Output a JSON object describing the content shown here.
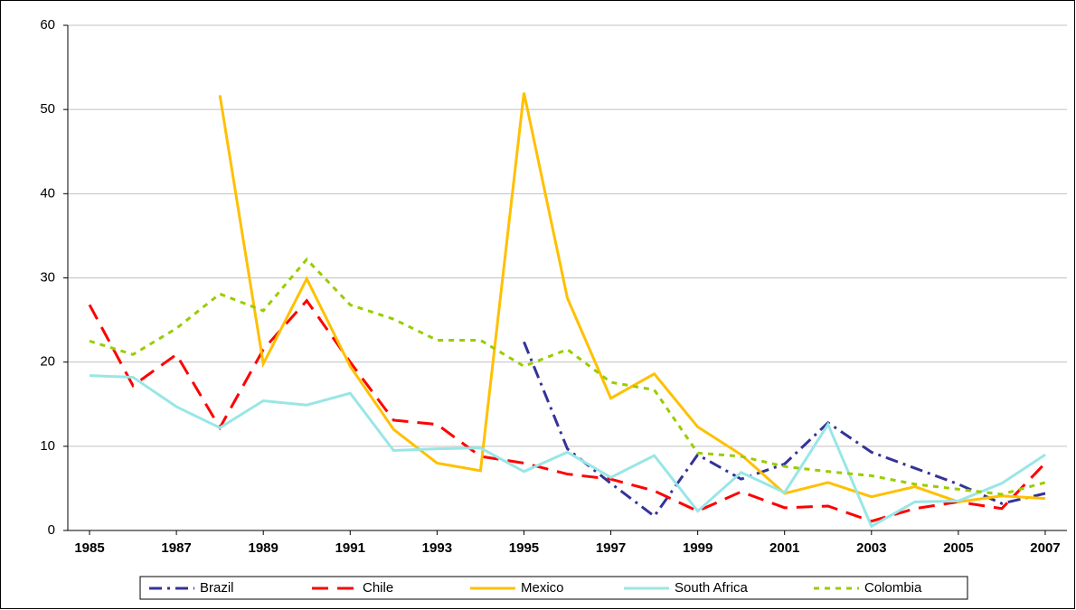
{
  "chart_data": {
    "type": "line",
    "x": [
      1985,
      1986,
      1987,
      1988,
      1989,
      1990,
      1991,
      1992,
      1993,
      1994,
      1995,
      1996,
      1997,
      1998,
      1999,
      2000,
      2001,
      2002,
      2003,
      2004,
      2005,
      2006,
      2007
    ],
    "xlim": [
      1984.5,
      2007.5
    ],
    "xticks": [
      1985,
      1987,
      1989,
      1991,
      1993,
      1995,
      1997,
      1999,
      2001,
      2003,
      2005,
      2007
    ],
    "ylim": [
      0,
      60
    ],
    "yticks": [
      0,
      10,
      20,
      30,
      40,
      50,
      60
    ],
    "grid": true,
    "legend": "bottom",
    "series": [
      {
        "name": "Brazil",
        "color": "#333399",
        "dash": "dashdot",
        "values": [
          null,
          null,
          null,
          null,
          null,
          null,
          null,
          null,
          null,
          null,
          22.4,
          9.7,
          5.6,
          1.7,
          9.0,
          6.1,
          7.9,
          12.8,
          9.3,
          7.4,
          5.5,
          3.2,
          4.4
        ]
      },
      {
        "name": "Chile",
        "color": "#ff0000",
        "dash": "longdash",
        "values": [
          26.8,
          17.2,
          20.9,
          12.2,
          21.5,
          27.3,
          20.0,
          13.1,
          12.6,
          8.8,
          8.0,
          6.7,
          6.1,
          4.7,
          2.3,
          4.6,
          2.7,
          2.9,
          1.1,
          2.6,
          3.4,
          2.6,
          8.0
        ]
      },
      {
        "name": "Mexico",
        "color": "#ffc000",
        "dash": "solid",
        "values": [
          null,
          null,
          null,
          51.7,
          19.8,
          29.9,
          19.5,
          12.0,
          8.0,
          7.1,
          52.0,
          27.6,
          15.7,
          18.6,
          12.3,
          9.0,
          4.4,
          5.7,
          4.0,
          5.2,
          3.4,
          4.1,
          3.8
        ]
      },
      {
        "name": "South Africa",
        "color": "#99e6e6",
        "dash": "solid",
        "values": [
          18.4,
          18.2,
          14.7,
          12.2,
          15.4,
          14.9,
          16.3,
          9.5,
          9.7,
          9.8,
          7.0,
          9.3,
          6.3,
          8.9,
          2.3,
          6.9,
          4.5,
          12.6,
          0.5,
          3.4,
          3.5,
          5.6,
          9.0
        ]
      },
      {
        "name": "Colombia",
        "color": "#99cc00",
        "dash": "dot",
        "values": [
          22.5,
          20.9,
          24.0,
          28.1,
          26.1,
          32.2,
          26.8,
          25.1,
          22.6,
          22.6,
          19.5,
          21.5,
          17.6,
          16.7,
          9.2,
          8.8,
          7.6,
          7.0,
          6.5,
          5.5,
          4.9,
          4.3,
          5.7
        ]
      }
    ]
  }
}
